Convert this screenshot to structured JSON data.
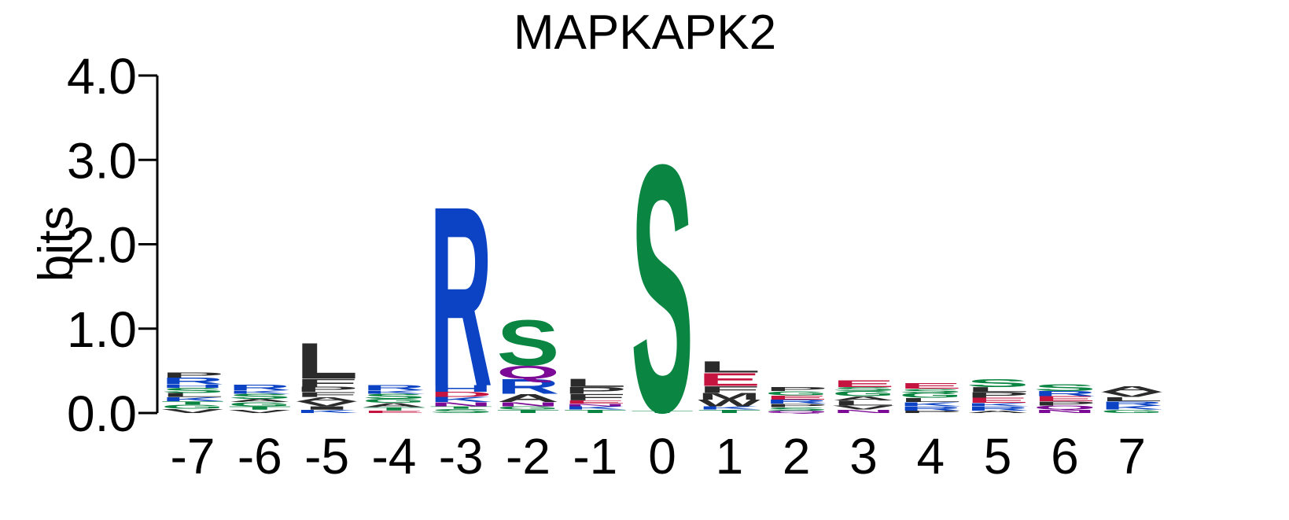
{
  "chart_data": {
    "type": "sequence-logo",
    "title": "MAPKAPK2",
    "ylabel": "bits",
    "ylim": [
      0,
      4
    ],
    "yticks": [
      "0.0",
      "1.0",
      "2.0",
      "3.0",
      "4.0"
    ],
    "ytick_values": [
      0,
      1,
      2,
      3,
      4
    ],
    "positions": [
      "-7",
      "-6",
      "-5",
      "-4",
      "-3",
      "-2",
      "-1",
      "0",
      "1",
      "2",
      "3",
      "4",
      "5",
      "6",
      "7"
    ],
    "colors": {
      "basic": "#0b43c4",
      "hydrophobic": "#2b2b2b",
      "polar": "#0a8542",
      "acidic": "#c4143f",
      "amide": "#7d0a96"
    },
    "stacks": [
      [
        [
          "V",
          0.05,
          "hydrophobic"
        ],
        [
          "G",
          0.05,
          "polar"
        ],
        [
          "T",
          0.04,
          "polar"
        ],
        [
          "K",
          0.05,
          "basic"
        ],
        [
          "L",
          0.05,
          "hydrophobic"
        ],
        [
          "S",
          0.06,
          "polar"
        ],
        [
          "H",
          0.04,
          "basic"
        ],
        [
          "R",
          0.08,
          "basic"
        ],
        [
          "P",
          0.06,
          "hydrophobic"
        ]
      ],
      [
        [
          "V",
          0.04,
          "hydrophobic"
        ],
        [
          "T",
          0.04,
          "polar"
        ],
        [
          "G",
          0.05,
          "polar"
        ],
        [
          "A",
          0.04,
          "hydrophobic"
        ],
        [
          "S",
          0.06,
          "polar"
        ],
        [
          "K",
          0.04,
          "basic"
        ],
        [
          "R",
          0.07,
          "basic"
        ]
      ],
      [
        [
          "K",
          0.04,
          "basic"
        ],
        [
          "I",
          0.04,
          "hydrophobic"
        ],
        [
          "V",
          0.06,
          "hydrophobic"
        ],
        [
          "A",
          0.05,
          "hydrophobic"
        ],
        [
          "F",
          0.06,
          "hydrophobic"
        ],
        [
          "P",
          0.06,
          "hydrophobic"
        ],
        [
          "F",
          0.1,
          "hydrophobic"
        ],
        [
          "L",
          0.44,
          "hydrophobic"
        ]
      ],
      [
        [
          "E",
          0.03,
          "acidic"
        ],
        [
          "T",
          0.04,
          "polar"
        ],
        [
          "A",
          0.05,
          "hydrophobic"
        ],
        [
          "G",
          0.05,
          "polar"
        ],
        [
          "S",
          0.06,
          "polar"
        ],
        [
          "K",
          0.04,
          "basic"
        ],
        [
          "R",
          0.06,
          "basic"
        ]
      ],
      [
        [
          "S",
          0.05,
          "polar"
        ],
        [
          "T",
          0.03,
          "polar"
        ],
        [
          "N",
          0.05,
          "amide"
        ],
        [
          "K",
          0.06,
          "basic"
        ],
        [
          "D",
          0.06,
          "acidic"
        ],
        [
          "H",
          0.08,
          "basic"
        ],
        [
          "R",
          2.22,
          "basic"
        ]
      ],
      [
        [
          "T",
          0.04,
          "polar"
        ],
        [
          "G",
          0.04,
          "polar"
        ],
        [
          "N",
          0.05,
          "amide"
        ],
        [
          "A",
          0.1,
          "hydrophobic"
        ],
        [
          "R",
          0.18,
          "basic"
        ],
        [
          "Q",
          0.16,
          "amide"
        ],
        [
          "S",
          0.56,
          "polar"
        ]
      ],
      [
        [
          "T",
          0.04,
          "polar"
        ],
        [
          "K",
          0.04,
          "basic"
        ],
        [
          "N",
          0.03,
          "amide"
        ],
        [
          "E",
          0.04,
          "acidic"
        ],
        [
          "F",
          0.08,
          "hydrophobic"
        ],
        [
          "P",
          0.08,
          "hydrophobic"
        ],
        [
          "L",
          0.1,
          "hydrophobic"
        ]
      ],
      [
        [
          "T",
          0.03,
          "polar"
        ],
        [
          "S",
          3.05,
          "polar"
        ]
      ],
      [
        [
          "T",
          0.04,
          "polar"
        ],
        [
          "K",
          0.04,
          "basic"
        ],
        [
          "W",
          0.08,
          "hydrophobic"
        ],
        [
          "M",
          0.08,
          "hydrophobic"
        ],
        [
          "F",
          0.08,
          "hydrophobic"
        ],
        [
          "E",
          0.16,
          "acidic"
        ],
        [
          "L",
          0.14,
          "hydrophobic"
        ]
      ],
      [
        [
          "Q",
          0.03,
          "amide"
        ],
        [
          "S",
          0.04,
          "polar"
        ],
        [
          "P",
          0.04,
          "hydrophobic"
        ],
        [
          "R",
          0.05,
          "basic"
        ],
        [
          "E",
          0.05,
          "acidic"
        ],
        [
          "G",
          0.05,
          "polar"
        ],
        [
          "P",
          0.05,
          "hydrophobic"
        ]
      ],
      [
        [
          "N",
          0.04,
          "amide"
        ],
        [
          "V",
          0.05,
          "hydrophobic"
        ],
        [
          "L",
          0.06,
          "hydrophobic"
        ],
        [
          "A",
          0.05,
          "hydrophobic"
        ],
        [
          "G",
          0.06,
          "polar"
        ],
        [
          "S",
          0.05,
          "polar"
        ],
        [
          "E",
          0.08,
          "acidic"
        ]
      ],
      [
        [
          "P",
          0.03,
          "hydrophobic"
        ],
        [
          "R",
          0.05,
          "basic"
        ],
        [
          "K",
          0.05,
          "basic"
        ],
        [
          "L",
          0.05,
          "hydrophobic"
        ],
        [
          "G",
          0.06,
          "polar"
        ],
        [
          "S",
          0.05,
          "polar"
        ],
        [
          "E",
          0.07,
          "acidic"
        ]
      ],
      [
        [
          "A",
          0.03,
          "hydrophobic"
        ],
        [
          "R",
          0.05,
          "basic"
        ],
        [
          "K",
          0.04,
          "basic"
        ],
        [
          "E",
          0.06,
          "acidic"
        ],
        [
          "P",
          0.07,
          "hydrophobic"
        ],
        [
          "L",
          0.06,
          "hydrophobic"
        ],
        [
          "S",
          0.1,
          "polar"
        ]
      ],
      [
        [
          "N",
          0.04,
          "amide"
        ],
        [
          "Q",
          0.05,
          "amide"
        ],
        [
          "P",
          0.05,
          "hydrophobic"
        ],
        [
          "E",
          0.06,
          "acidic"
        ],
        [
          "R",
          0.06,
          "basic"
        ],
        [
          "S",
          0.08,
          "polar"
        ]
      ],
      [
        [
          "G",
          0.04,
          "polar"
        ],
        [
          "K",
          0.05,
          "basic"
        ],
        [
          "R",
          0.05,
          "basic"
        ],
        [
          "L",
          0.05,
          "hydrophobic"
        ],
        [
          "V",
          0.06,
          "hydrophobic"
        ],
        [
          "A",
          0.07,
          "hydrophobic"
        ]
      ]
    ]
  }
}
